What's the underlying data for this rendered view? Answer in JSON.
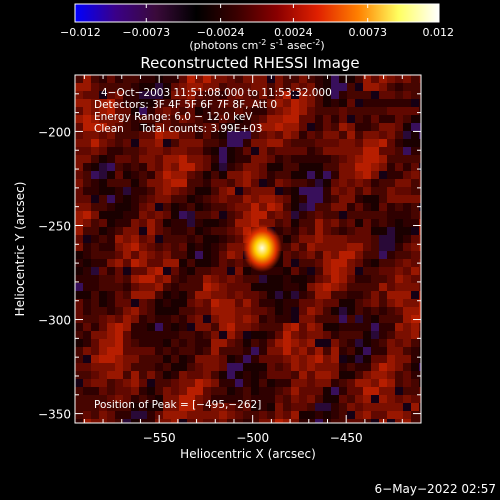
{
  "colorbar": {
    "min": -0.012,
    "max": 0.012,
    "tick_labels": [
      "-0.012",
      "-0.0073",
      "-0.0024",
      "0.0024",
      "0.0073",
      "0.012"
    ],
    "tick_values": [
      -0.012,
      -0.0073,
      -0.0024,
      0.0024,
      0.0073,
      0.012
    ],
    "unit_parts": [
      "(photons cm",
      "-2",
      " s",
      "-1",
      " asec",
      "-2",
      ")"
    ],
    "colormap": [
      "#0000ff",
      "#3a0088",
      "#3a0a3a",
      "#000000",
      "#3a0000",
      "#8a0000",
      "#e02000",
      "#ff8000",
      "#ffff60",
      "#ffffff"
    ]
  },
  "chart_data": {
    "type": "heatmap",
    "title": "Reconstructed RHESSI Image",
    "xlabel": "Heliocentric X (arcsec)",
    "ylabel": "Heliocentric Y (arcsec)",
    "xlim": [
      -595,
      -410
    ],
    "ylim": [
      -355,
      -170
    ],
    "xticks": [
      -550,
      -500,
      -450
    ],
    "yticks": [
      -200,
      -250,
      -300,
      -350
    ],
    "xtick_labels": [
      "−550",
      "−500",
      "−450"
    ],
    "ytick_labels": [
      "−200",
      "−250",
      "−300",
      "−350"
    ],
    "peak": {
      "x": -495,
      "y": -262,
      "value": 0.012
    },
    "annotations": [
      "4−Oct−2003 11:51:08.000 to 11:53:32.000",
      "Detectors: 3F 4F 5F 6F 7F 8F, Att 0",
      "Energy Range: 6.0 − 12.0 keV",
      "Clean     Total counts: 3.99E+03"
    ],
    "peak_label": "Position of Peak = [−495,−262]"
  },
  "footer": {
    "timestamp": "6−May−2022 02:57"
  }
}
